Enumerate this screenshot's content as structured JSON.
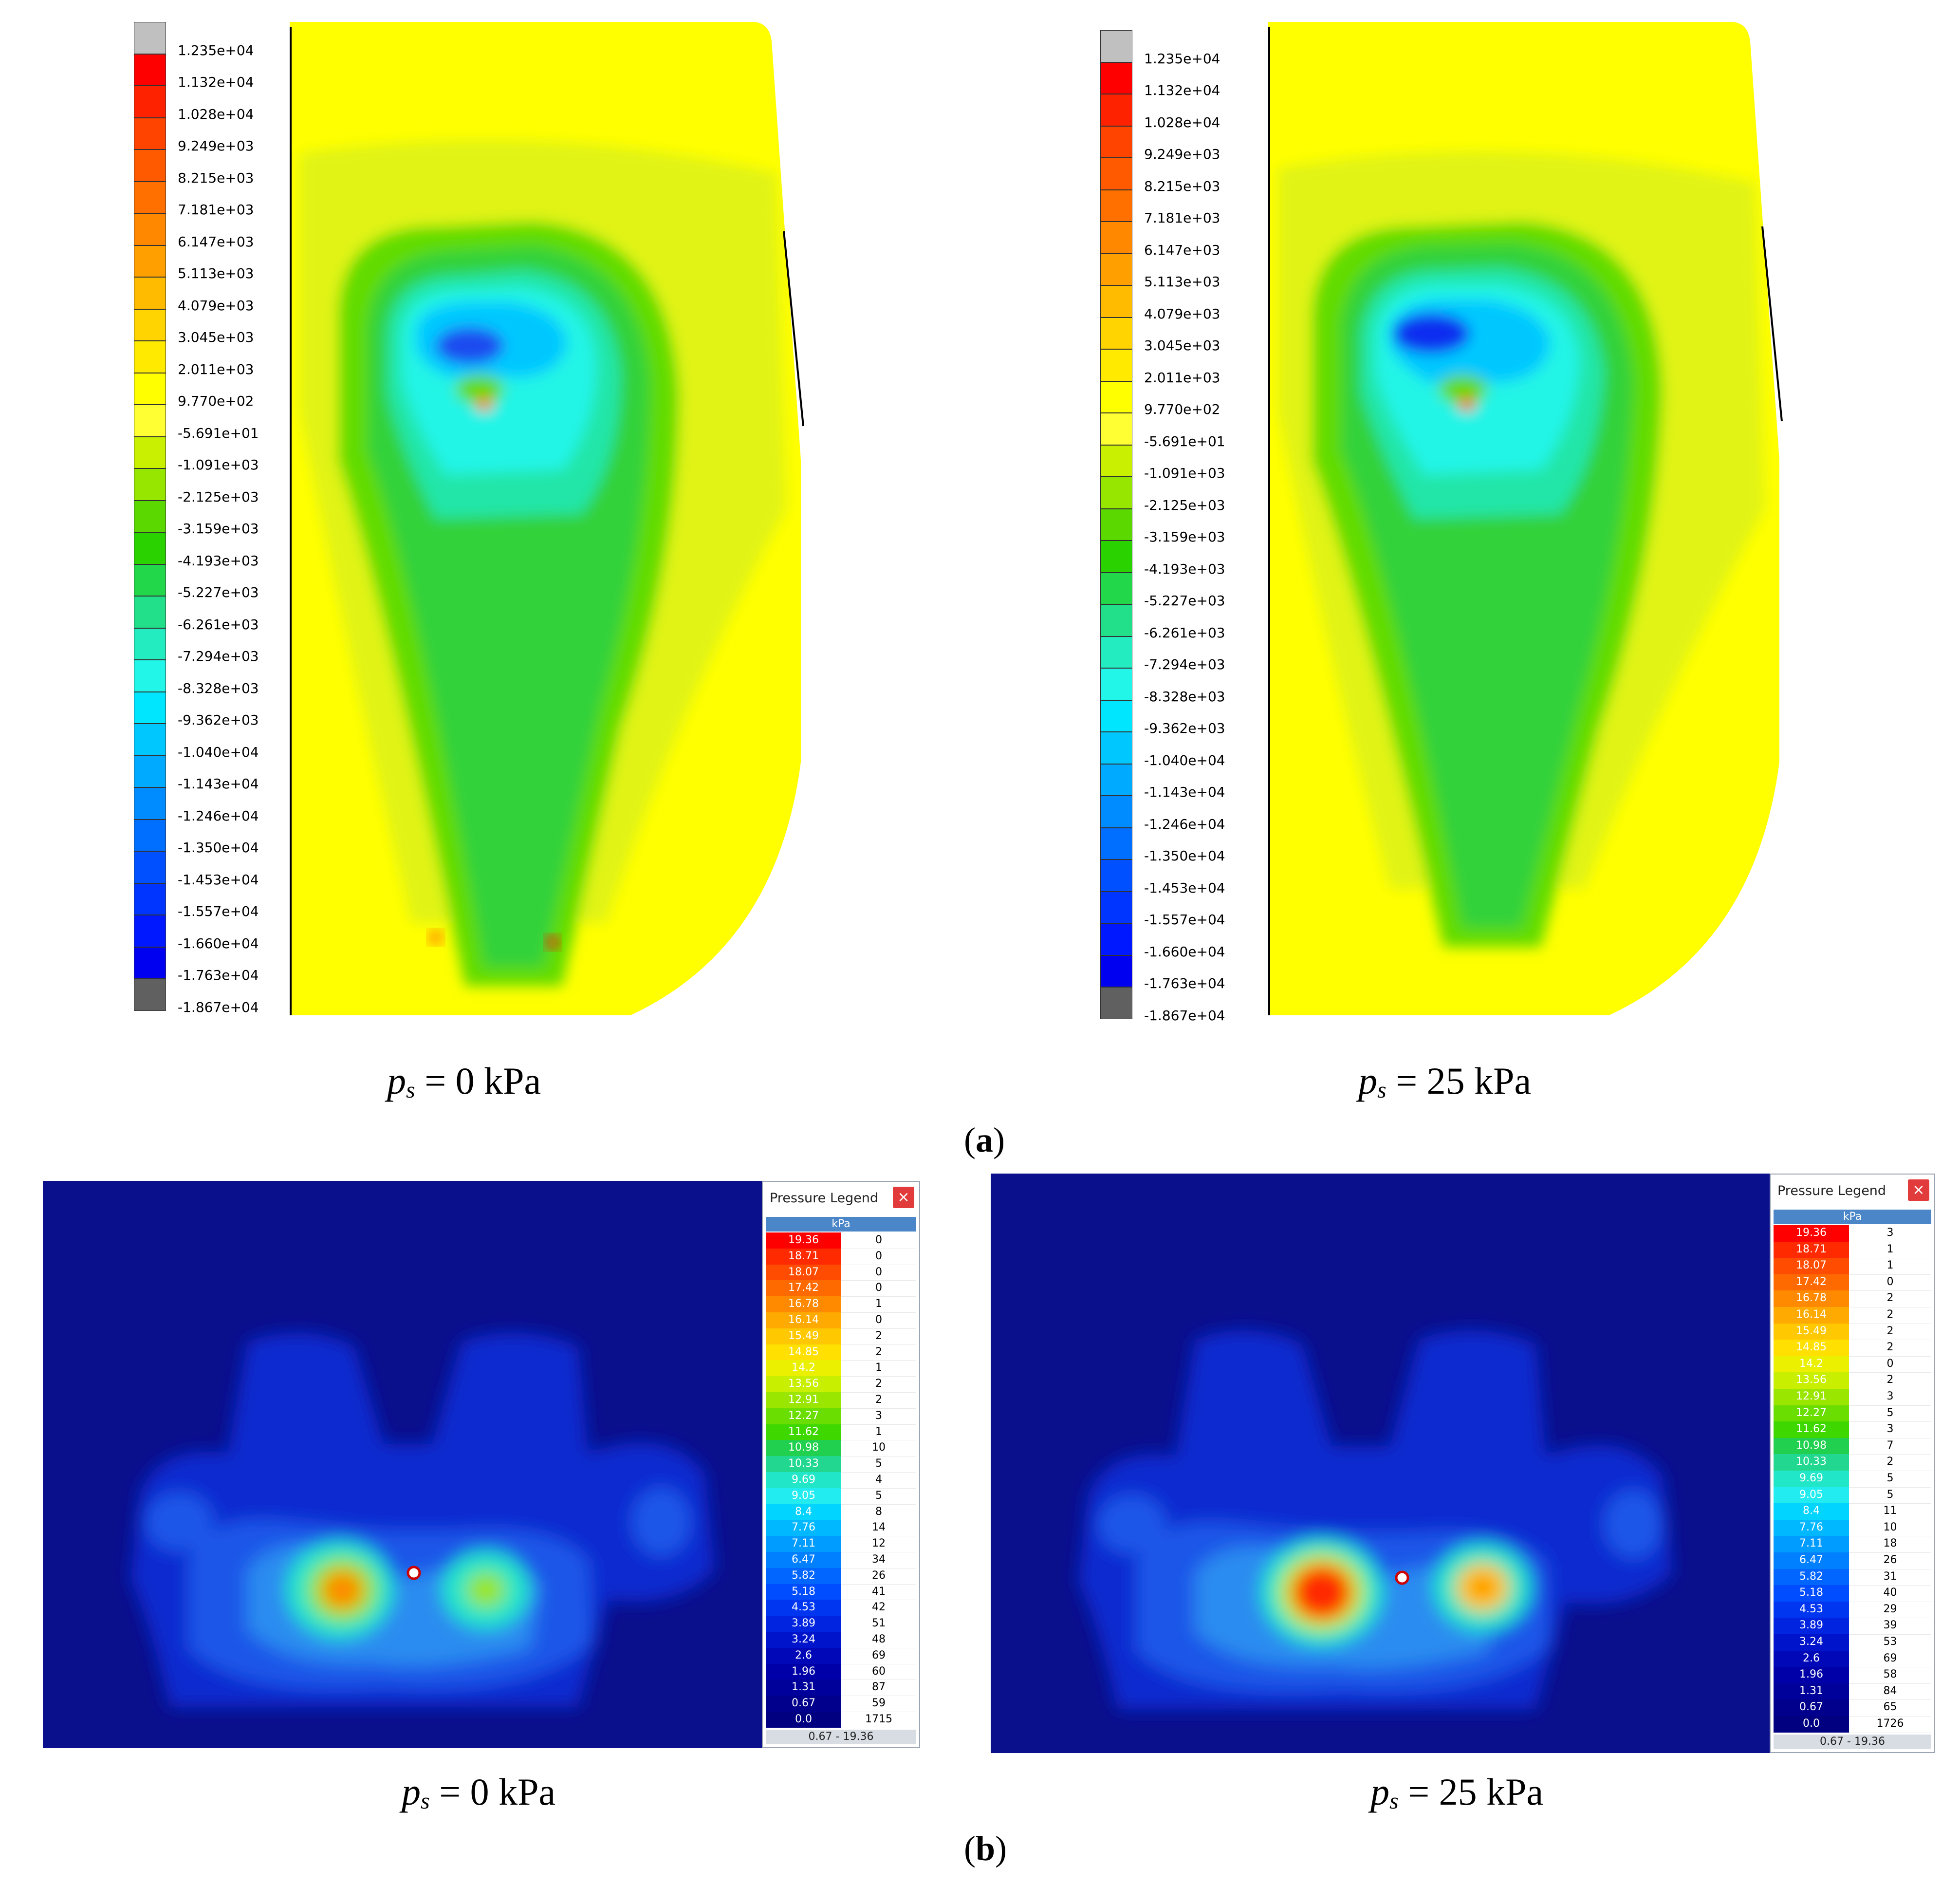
{
  "panel_a": {
    "label": "a",
    "legend_colors": [
      "#c0c0c0",
      "#ff0000",
      "#ff2200",
      "#ff4400",
      "#ff5a00",
      "#ff7000",
      "#ff8800",
      "#ffa000",
      "#ffbb00",
      "#ffd400",
      "#ffea00",
      "#ffff00",
      "#ffff33",
      "#c8f000",
      "#96e600",
      "#5ad800",
      "#2ad200",
      "#22d84a",
      "#22e08a",
      "#22ecc0",
      "#22f6e8",
      "#00e6ff",
      "#00c8ff",
      "#00aaff",
      "#008cff",
      "#006eff",
      "#0050ff",
      "#0034ff",
      "#0018ff",
      "#0000f0",
      "#606060"
    ],
    "legend_labels": [
      "1.235e+04",
      "1.132e+04",
      "1.028e+04",
      "9.249e+03",
      "8.215e+03",
      "7.181e+03",
      "6.147e+03",
      "5.113e+03",
      "4.079e+03",
      "3.045e+03",
      "2.011e+03",
      "9.770e+02",
      "-5.691e+01",
      "-1.091e+03",
      "-2.125e+03",
      "-3.159e+03",
      "-4.193e+03",
      "-5.227e+03",
      "-6.261e+03",
      "-7.294e+03",
      "-8.328e+03",
      "-9.362e+03",
      "-1.040e+04",
      "-1.143e+04",
      "-1.246e+04",
      "-1.350e+04",
      "-1.453e+04",
      "-1.557e+04",
      "-1.660e+04",
      "-1.763e+04",
      "-1.867e+04"
    ],
    "left": {
      "caption_var": "p",
      "caption_sub": "s",
      "caption_val": " = 0 kPa"
    },
    "right": {
      "caption_var": "p",
      "caption_sub": "s",
      "caption_val": " = 25 kPa"
    }
  },
  "panel_b": {
    "label": "b",
    "legend_title": "Pressure Legend",
    "close_glyph": "×",
    "unit": "kPa",
    "range": "0.67 - 19.36",
    "values": [
      "19.36",
      "18.71",
      "18.07",
      "17.42",
      "16.78",
      "16.14",
      "15.49",
      "14.85",
      "14.2",
      "13.56",
      "12.91",
      "12.27",
      "11.62",
      "10.98",
      "10.33",
      "9.69",
      "9.05",
      "8.4",
      "7.76",
      "7.11",
      "6.47",
      "5.82",
      "5.18",
      "4.53",
      "3.89",
      "3.24",
      "2.6",
      "1.96",
      "1.31",
      "0.67",
      "0.0"
    ],
    "value_colors": [
      "#ff0000",
      "#ff2a00",
      "#ff4c00",
      "#ff6a00",
      "#ff8a00",
      "#ffaa00",
      "#ffc800",
      "#ffe000",
      "#eaf000",
      "#c8ee00",
      "#9ae600",
      "#6ade00",
      "#3ed800",
      "#22d050",
      "#22d890",
      "#22e6c8",
      "#22ecf0",
      "#00d4ff",
      "#00b8ff",
      "#009cff",
      "#0080ff",
      "#0066ff",
      "#004cff",
      "#0036f0",
      "#0024e0",
      "#0014cc",
      "#0008b8",
      "#0000a8",
      "#00009a",
      "#00008c",
      "#000080"
    ],
    "left": {
      "counts": [
        "0",
        "0",
        "0",
        "0",
        "1",
        "0",
        "2",
        "2",
        "1",
        "2",
        "2",
        "3",
        "1",
        "10",
        "5",
        "4",
        "5",
        "8",
        "14",
        "12",
        "34",
        "26",
        "41",
        "42",
        "51",
        "48",
        "69",
        "60",
        "87",
        "59",
        "1715"
      ],
      "caption_var": "p",
      "caption_sub": "s",
      "caption_val": " = 0 kPa"
    },
    "right": {
      "counts": [
        "3",
        "1",
        "1",
        "0",
        "2",
        "2",
        "2",
        "2",
        "0",
        "2",
        "3",
        "5",
        "3",
        "7",
        "2",
        "5",
        "5",
        "11",
        "10",
        "18",
        "26",
        "31",
        "40",
        "29",
        "39",
        "53",
        "69",
        "58",
        "84",
        "65",
        "1726"
      ],
      "caption_var": "p",
      "caption_sub": "s",
      "caption_val": " = 25 kPa"
    }
  }
}
